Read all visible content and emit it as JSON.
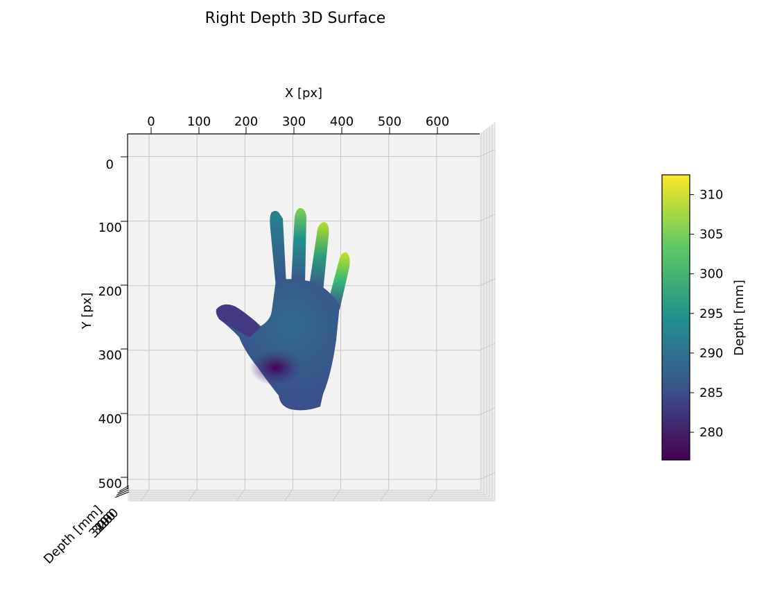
{
  "chart_data": {
    "type": "surface3d",
    "title": "Right Depth 3D Surface",
    "xlabel": "X [px]",
    "ylabel": "Y [px]",
    "zlabel": "Depth [mm]",
    "xlim": [
      -45,
      690
    ],
    "ylim": [
      -35,
      515
    ],
    "x_ticks": [
      "0",
      "100",
      "200",
      "300",
      "400",
      "500",
      "600"
    ],
    "y_ticks": [
      "0",
      "100",
      "200",
      "300",
      "400",
      "500"
    ],
    "z_ticks": [
      "280",
      "290",
      "300",
      "310"
    ],
    "grid": true,
    "view": "top-down (elevation 90)",
    "colormap": "viridis",
    "colormap_stops": [
      "#440154",
      "#3b528b",
      "#21918c",
      "#5ec962",
      "#fde725"
    ],
    "depth_range": [
      276.5,
      312.5
    ],
    "regions": [
      {
        "name": "palm",
        "x": 330,
        "y": 290,
        "depth": 286
      },
      {
        "name": "thumb",
        "x": 185,
        "y": 255,
        "depth": 283
      },
      {
        "name": "thenar",
        "x": 270,
        "y": 335,
        "depth": 278
      },
      {
        "name": "index-finger",
        "x": 265,
        "y": 150,
        "depth": 292
      },
      {
        "name": "middle-finger",
        "x": 310,
        "y": 135,
        "depth": 296
      },
      {
        "name": "ring-finger",
        "x": 365,
        "y": 160,
        "depth": 299
      },
      {
        "name": "pinky-finger",
        "x": 405,
        "y": 200,
        "depth": 301
      }
    ],
    "colorbar": {
      "label": "Depth [mm]",
      "range": [
        276.5,
        312.5
      ],
      "ticks": [
        "280",
        "285",
        "290",
        "295",
        "300",
        "305",
        "310"
      ]
    }
  }
}
